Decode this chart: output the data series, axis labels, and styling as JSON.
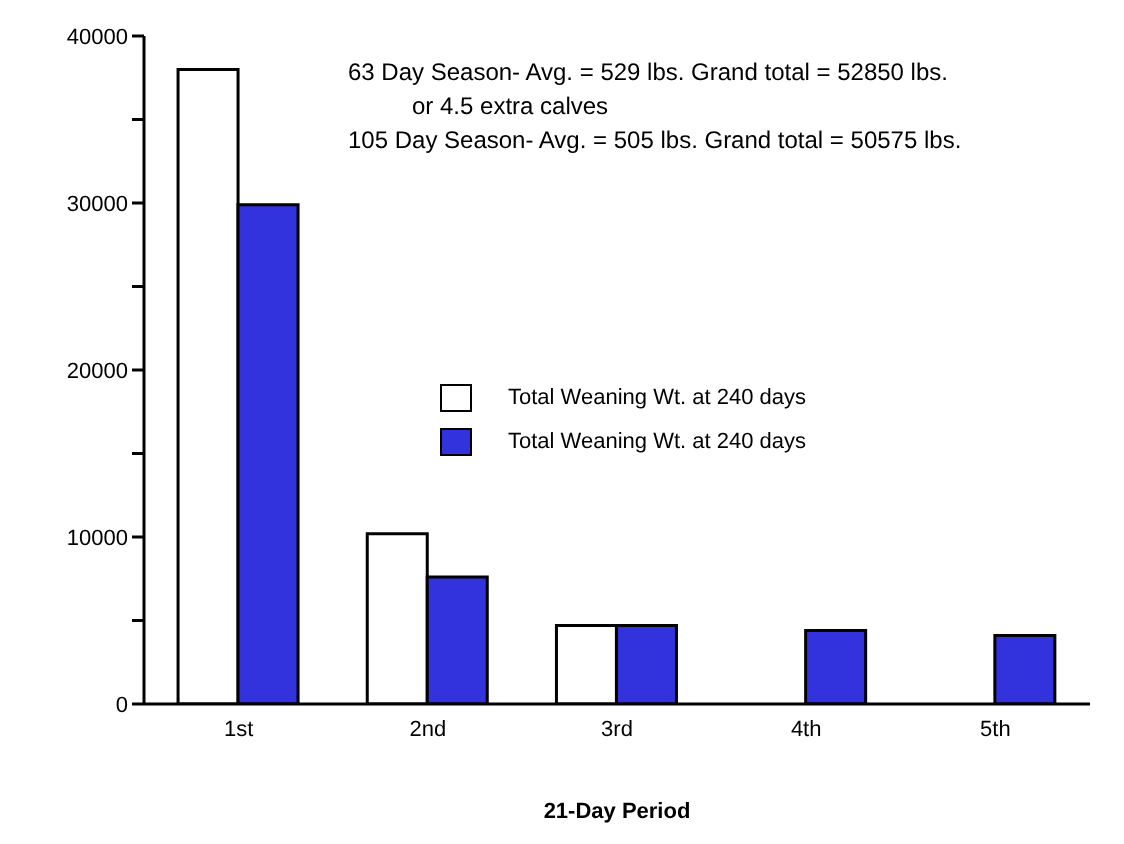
{
  "chart_data": {
    "type": "bar",
    "xlabel": "21-Day Period",
    "categories": [
      "1st",
      "2nd",
      "3rd",
      "4th",
      "5th"
    ],
    "series": [
      {
        "name": "Total Weaning Wt. at 240 days",
        "color": "#ffffff",
        "values": [
          38000,
          10200,
          4700,
          null,
          null
        ]
      },
      {
        "name": "Total Weaning Wt. at 240 days",
        "color": "#3333dd",
        "values": [
          29900,
          7600,
          4700,
          4400,
          4100
        ]
      }
    ],
    "ylim": [
      0,
      40000
    ],
    "yticks": [
      0,
      {
        "value": 5000,
        "label": null
      },
      10000,
      {
        "value": 15000,
        "label": null
      },
      20000,
      {
        "value": 25000,
        "label": null
      },
      30000,
      {
        "value": 35000,
        "label": null
      },
      40000
    ],
    "grid": false,
    "legend": "right",
    "annotations": [
      "63 Day Season- Avg. = 529 lbs.  Grand total = 52850 lbs.",
      "or 4.5 extra calves",
      "105 Day Season- Avg. = 505 lbs. Grand total = 50575 lbs."
    ]
  }
}
